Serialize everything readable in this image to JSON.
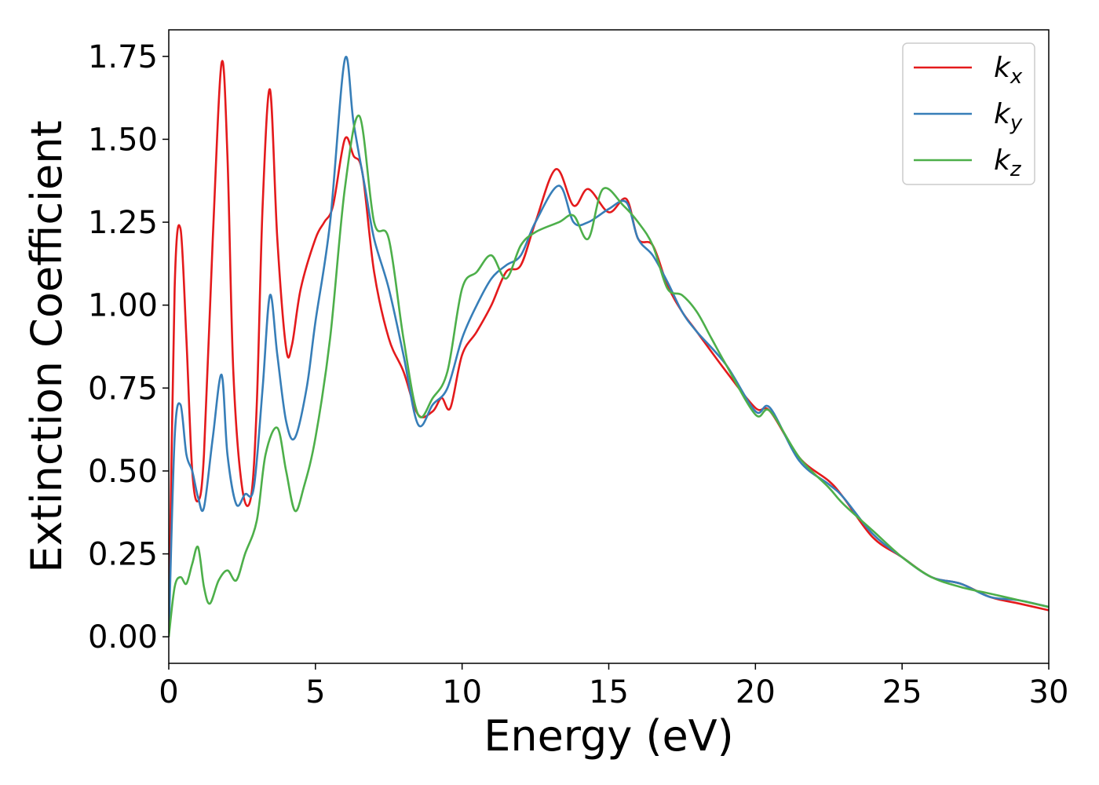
{
  "chart_data": {
    "type": "line",
    "title": "",
    "xlabel": "Energy (eV)",
    "ylabel": "Extinction Coefficient",
    "xlim": [
      0,
      30
    ],
    "ylim": [
      -0.08,
      1.83
    ],
    "xticks": [
      0,
      5,
      10,
      15,
      20,
      25,
      30
    ],
    "xtick_labels": [
      "0",
      "5",
      "10",
      "15",
      "20",
      "25",
      "30"
    ],
    "yticks": [
      0.0,
      0.25,
      0.5,
      0.75,
      1.0,
      1.25,
      1.5,
      1.75
    ],
    "ytick_labels": [
      "0.00",
      "0.25",
      "0.50",
      "0.75",
      "1.00",
      "1.25",
      "1.50",
      "1.75"
    ],
    "grid": false,
    "legend_position": "top-right",
    "series": [
      {
        "name": "k_x",
        "label_base": "k",
        "label_sub": "x",
        "color": "#e41a1c",
        "x": [
          0,
          0.2,
          0.4,
          0.6,
          0.8,
          1.0,
          1.2,
          1.5,
          1.8,
          2.0,
          2.2,
          2.5,
          2.8,
          3.0,
          3.2,
          3.45,
          3.7,
          4.0,
          4.2,
          4.5,
          5.0,
          5.3,
          5.6,
          6.0,
          6.3,
          6.6,
          7.0,
          7.5,
          8.0,
          8.5,
          9.0,
          9.3,
          9.6,
          10.0,
          10.5,
          11.0,
          11.5,
          12.0,
          12.5,
          13.2,
          13.8,
          14.3,
          15.0,
          15.6,
          16.0,
          16.5,
          17.0,
          17.5,
          18.0,
          19.0,
          20.0,
          20.5,
          21.5,
          22.5,
          23.0,
          24.0,
          25.0,
          26.0,
          27.0,
          28.0,
          29.0,
          30.0
        ],
        "y": [
          0.0,
          1.05,
          1.23,
          0.9,
          0.5,
          0.41,
          0.55,
          1.2,
          1.73,
          1.45,
          0.8,
          0.45,
          0.42,
          0.7,
          1.3,
          1.65,
          1.2,
          0.87,
          0.88,
          1.05,
          1.2,
          1.25,
          1.3,
          1.5,
          1.45,
          1.4,
          1.1,
          0.9,
          0.8,
          0.67,
          0.68,
          0.72,
          0.69,
          0.85,
          0.92,
          1.0,
          1.1,
          1.12,
          1.25,
          1.41,
          1.3,
          1.35,
          1.28,
          1.32,
          1.2,
          1.18,
          1.06,
          0.98,
          0.92,
          0.8,
          0.69,
          0.68,
          0.54,
          0.47,
          0.42,
          0.3,
          0.24,
          0.18,
          0.16,
          0.12,
          0.1,
          0.08
        ]
      },
      {
        "name": "k_y",
        "label_base": "k",
        "label_sub": "y",
        "color": "#377eb8",
        "x": [
          0,
          0.2,
          0.4,
          0.6,
          0.8,
          1.0,
          1.2,
          1.5,
          1.8,
          2.0,
          2.3,
          2.6,
          2.9,
          3.2,
          3.45,
          3.7,
          4.0,
          4.3,
          4.7,
          5.0,
          5.5,
          6.0,
          6.3,
          6.7,
          7.0,
          7.5,
          8.0,
          8.5,
          9.0,
          9.5,
          10.0,
          10.5,
          11.0,
          11.5,
          12.0,
          12.5,
          13.3,
          13.8,
          14.3,
          15.0,
          15.6,
          16.0,
          16.5,
          17.0,
          17.5,
          18.0,
          19.0,
          20.0,
          20.5,
          21.5,
          22.5,
          23.0,
          24.0,
          25.0,
          26.0,
          27.0,
          28.0,
          29.0,
          30.0
        ],
        "y": [
          0.0,
          0.6,
          0.7,
          0.55,
          0.5,
          0.42,
          0.39,
          0.6,
          0.79,
          0.55,
          0.4,
          0.43,
          0.45,
          0.75,
          1.03,
          0.85,
          0.65,
          0.6,
          0.75,
          0.95,
          1.25,
          1.74,
          1.55,
          1.35,
          1.2,
          1.05,
          0.85,
          0.64,
          0.7,
          0.75,
          0.9,
          1.0,
          1.08,
          1.12,
          1.15,
          1.25,
          1.36,
          1.25,
          1.25,
          1.29,
          1.31,
          1.2,
          1.15,
          1.07,
          0.98,
          0.92,
          0.82,
          0.68,
          0.69,
          0.53,
          0.46,
          0.42,
          0.31,
          0.24,
          0.18,
          0.16,
          0.12,
          0.11,
          0.09
        ]
      },
      {
        "name": "k_z",
        "label_base": "k",
        "label_sub": "z",
        "color": "#4daf4a",
        "x": [
          0,
          0.2,
          0.4,
          0.6,
          0.8,
          1.0,
          1.2,
          1.4,
          1.7,
          2.0,
          2.3,
          2.6,
          3.0,
          3.3,
          3.7,
          4.0,
          4.3,
          4.6,
          5.0,
          5.5,
          6.0,
          6.5,
          7.0,
          7.5,
          8.0,
          8.5,
          9.0,
          9.5,
          10.0,
          10.5,
          11.0,
          11.5,
          12.0,
          12.5,
          13.3,
          13.8,
          14.3,
          14.8,
          15.5,
          16.0,
          16.5,
          17.0,
          17.5,
          18.0,
          18.5,
          19.0,
          20.0,
          20.5,
          21.5,
          22.5,
          23.0,
          24.0,
          25.0,
          26.0,
          27.0,
          28.0,
          29.0,
          30.0
        ],
        "y": [
          0.0,
          0.15,
          0.18,
          0.16,
          0.22,
          0.27,
          0.15,
          0.1,
          0.17,
          0.2,
          0.17,
          0.25,
          0.35,
          0.55,
          0.63,
          0.5,
          0.38,
          0.45,
          0.6,
          0.9,
          1.35,
          1.57,
          1.25,
          1.2,
          0.9,
          0.67,
          0.72,
          0.8,
          1.05,
          1.1,
          1.15,
          1.08,
          1.18,
          1.22,
          1.25,
          1.27,
          1.2,
          1.35,
          1.3,
          1.25,
          1.18,
          1.05,
          1.03,
          0.98,
          0.9,
          0.82,
          0.67,
          0.68,
          0.54,
          0.45,
          0.4,
          0.32,
          0.24,
          0.18,
          0.15,
          0.13,
          0.11,
          0.09
        ]
      }
    ]
  }
}
